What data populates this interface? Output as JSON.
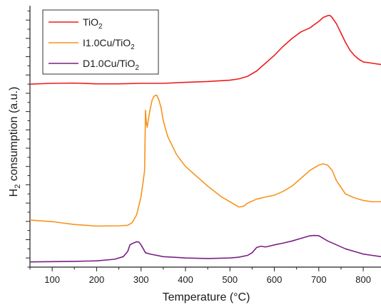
{
  "chart_data": {
    "type": "line",
    "title": "",
    "xlabel": "Temperature (°C)",
    "ylabel": {
      "main": "H",
      "sub": "2",
      "rest": " consumption (a.u.)"
    },
    "xlim": [
      50,
      840
    ],
    "ylim": [
      0,
      1
    ],
    "y_ticks_labeled": false,
    "x_ticks": [
      100,
      200,
      300,
      400,
      500,
      600,
      700,
      800
    ],
    "grid": false,
    "legend_position": "top-left",
    "series": [
      {
        "name": {
          "main": "TiO",
          "sub": "2",
          "rest": ""
        },
        "color": "#ee1c1c",
        "x": [
          50,
          100,
          150,
          200,
          250,
          300,
          350,
          400,
          450,
          500,
          520,
          540,
          560,
          580,
          600,
          620,
          640,
          660,
          680,
          700,
          710,
          720,
          725,
          730,
          740,
          750,
          760,
          770,
          780,
          790,
          800,
          820,
          840
        ],
        "y": [
          0.7,
          0.703,
          0.704,
          0.701,
          0.701,
          0.703,
          0.703,
          0.707,
          0.71,
          0.715,
          0.72,
          0.73,
          0.75,
          0.78,
          0.81,
          0.845,
          0.875,
          0.9,
          0.915,
          0.94,
          0.955,
          0.962,
          0.963,
          0.955,
          0.93,
          0.895,
          0.86,
          0.83,
          0.81,
          0.795,
          0.785,
          0.78,
          0.775
        ]
      },
      {
        "name": {
          "main": "I1.0Cu/TiO",
          "sub": "2",
          "rest": ""
        },
        "color": "#f7941d",
        "x": [
          50,
          100,
          150,
          200,
          250,
          270,
          280,
          290,
          300,
          305,
          308,
          310,
          312,
          314,
          316,
          320,
          325,
          330,
          335,
          340,
          345,
          350,
          360,
          380,
          400,
          420,
          450,
          480,
          500,
          510,
          520,
          530,
          540,
          560,
          580,
          600,
          620,
          640,
          660,
          680,
          700,
          710,
          720,
          730,
          740,
          760,
          780,
          800,
          820,
          840
        ],
        "y": [
          0.18,
          0.174,
          0.163,
          0.157,
          0.158,
          0.16,
          0.17,
          0.2,
          0.27,
          0.33,
          0.37,
          0.6,
          0.55,
          0.535,
          0.56,
          0.6,
          0.64,
          0.655,
          0.658,
          0.64,
          0.61,
          0.56,
          0.5,
          0.43,
          0.385,
          0.355,
          0.31,
          0.27,
          0.25,
          0.24,
          0.23,
          0.232,
          0.245,
          0.26,
          0.268,
          0.275,
          0.29,
          0.31,
          0.34,
          0.37,
          0.39,
          0.395,
          0.39,
          0.37,
          0.33,
          0.28,
          0.265,
          0.255,
          0.25,
          0.25
        ]
      },
      {
        "name": {
          "main": "D1.0Cu/TiO",
          "sub": "2",
          "rest": ""
        },
        "color": "#7b1f86",
        "x": [
          50,
          100,
          150,
          200,
          240,
          260,
          270,
          275,
          280,
          290,
          295,
          300,
          305,
          310,
          320,
          350,
          400,
          450,
          500,
          520,
          540,
          550,
          560,
          570,
          580,
          600,
          620,
          640,
          660,
          680,
          690,
          700,
          720,
          740,
          760,
          780,
          800,
          820,
          840
        ],
        "y": [
          0.02,
          0.021,
          0.022,
          0.024,
          0.03,
          0.04,
          0.06,
          0.085,
          0.09,
          0.097,
          0.096,
          0.085,
          0.07,
          0.055,
          0.05,
          0.04,
          0.035,
          0.033,
          0.035,
          0.038,
          0.045,
          0.055,
          0.075,
          0.08,
          0.077,
          0.085,
          0.092,
          0.1,
          0.11,
          0.12,
          0.121,
          0.12,
          0.1,
          0.085,
          0.07,
          0.06,
          0.05,
          0.045,
          0.04
        ]
      }
    ]
  }
}
